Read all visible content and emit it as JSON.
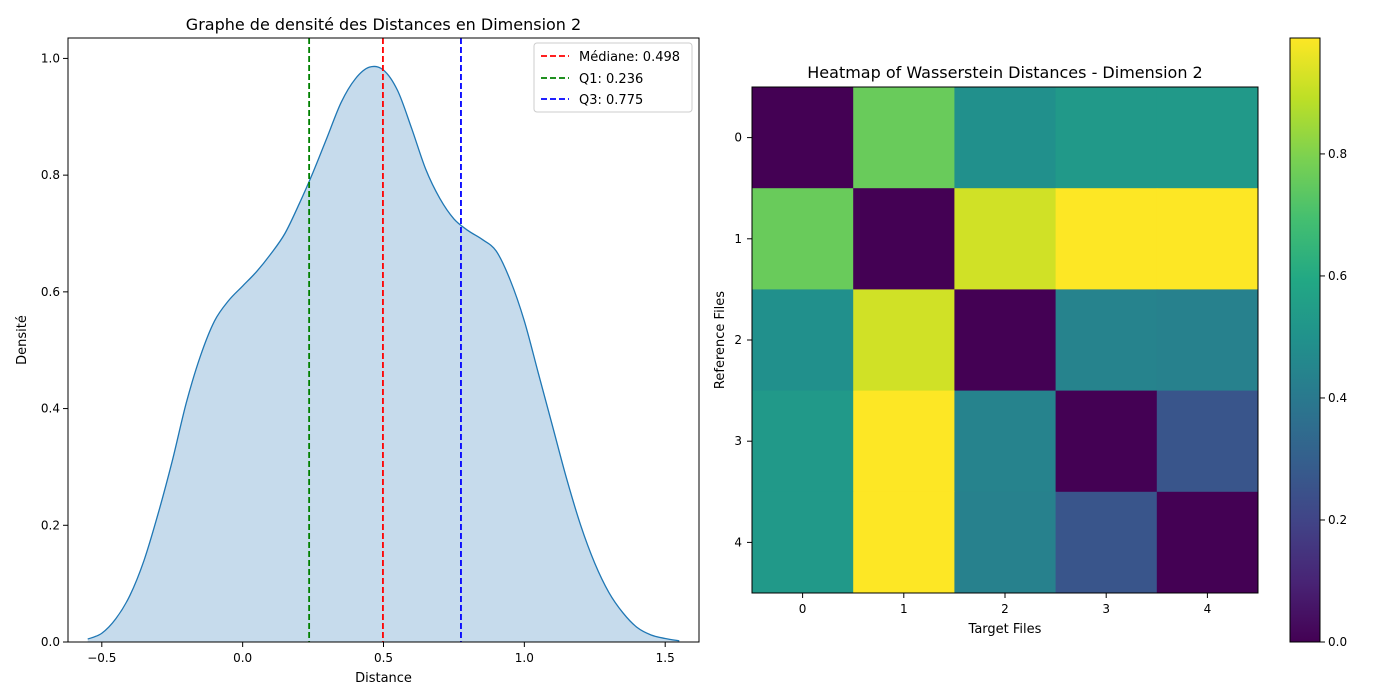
{
  "chart_data": [
    {
      "type": "area",
      "title": "Graphe de densité des Distances en Dimension 2",
      "xlabel": "Distance",
      "ylabel": "Densité",
      "xlim": [
        -0.62,
        1.62
      ],
      "ylim": [
        0,
        1.035
      ],
      "xticks": [
        -0.5,
        0.0,
        0.5,
        1.0,
        1.5
      ],
      "xtick_labels": [
        "−0.5",
        "0.0",
        "0.5",
        "1.0",
        "1.5"
      ],
      "yticks": [
        0.0,
        0.2,
        0.4,
        0.6,
        0.8,
        1.0
      ],
      "ytick_labels": [
        "0.0",
        "0.2",
        "0.4",
        "0.6",
        "0.8",
        "1.0"
      ],
      "grid": false,
      "legend_position": "top-right",
      "series": [
        {
          "x": [
            -0.55,
            -0.5,
            -0.45,
            -0.4,
            -0.35,
            -0.3,
            -0.25,
            -0.2,
            -0.15,
            -0.1,
            -0.05,
            0.0,
            0.05,
            0.1,
            0.15,
            0.2,
            0.25,
            0.3,
            0.35,
            0.4,
            0.45,
            0.5,
            0.55,
            0.6,
            0.65,
            0.7,
            0.75,
            0.8,
            0.85,
            0.9,
            0.95,
            1.0,
            1.05,
            1.1,
            1.15,
            1.2,
            1.25,
            1.3,
            1.35,
            1.4,
            1.45,
            1.5,
            1.55
          ],
          "y": [
            0.005,
            0.015,
            0.04,
            0.08,
            0.14,
            0.22,
            0.31,
            0.41,
            0.49,
            0.55,
            0.585,
            0.61,
            0.635,
            0.665,
            0.7,
            0.75,
            0.805,
            0.865,
            0.925,
            0.965,
            0.985,
            0.98,
            0.945,
            0.88,
            0.81,
            0.76,
            0.725,
            0.705,
            0.69,
            0.67,
            0.62,
            0.55,
            0.46,
            0.37,
            0.28,
            0.2,
            0.135,
            0.085,
            0.05,
            0.025,
            0.012,
            0.006,
            0.002
          ]
        }
      ],
      "lines": [
        {
          "label": "Médiane: 0.498",
          "x": 0.498,
          "color": "#ff0000"
        },
        {
          "label": "Q1: 0.236",
          "x": 0.236,
          "color": "#008000"
        },
        {
          "label": "Q3: 0.775",
          "x": 0.775,
          "color": "#0000ff"
        }
      ],
      "colors": {
        "fill": "#c6dbec",
        "line": "#1f77b4"
      }
    },
    {
      "type": "heatmap",
      "title": "Heatmap of Wasserstein Distances - Dimension 2",
      "xlabel": "Target Files",
      "ylabel": "Reference Files",
      "x_categories": [
        "0",
        "1",
        "2",
        "3",
        "4"
      ],
      "y_categories": [
        "0",
        "1",
        "2",
        "3",
        "4"
      ],
      "values": [
        [
          0.0,
          0.76,
          0.49,
          0.53,
          0.53
        ],
        [
          0.76,
          0.0,
          0.92,
          0.99,
          0.99
        ],
        [
          0.49,
          0.92,
          0.0,
          0.44,
          0.43
        ],
        [
          0.53,
          0.99,
          0.44,
          0.0,
          0.26
        ],
        [
          0.53,
          0.99,
          0.43,
          0.26,
          0.0
        ]
      ],
      "colormap": "viridis",
      "vmin": 0.0,
      "vmax": 0.99,
      "colorbar_ticks": [
        0.0,
        0.2,
        0.4,
        0.6,
        0.8
      ],
      "colorbar_tick_labels": [
        "0.0",
        "0.2",
        "0.4",
        "0.6",
        "0.8"
      ]
    }
  ]
}
